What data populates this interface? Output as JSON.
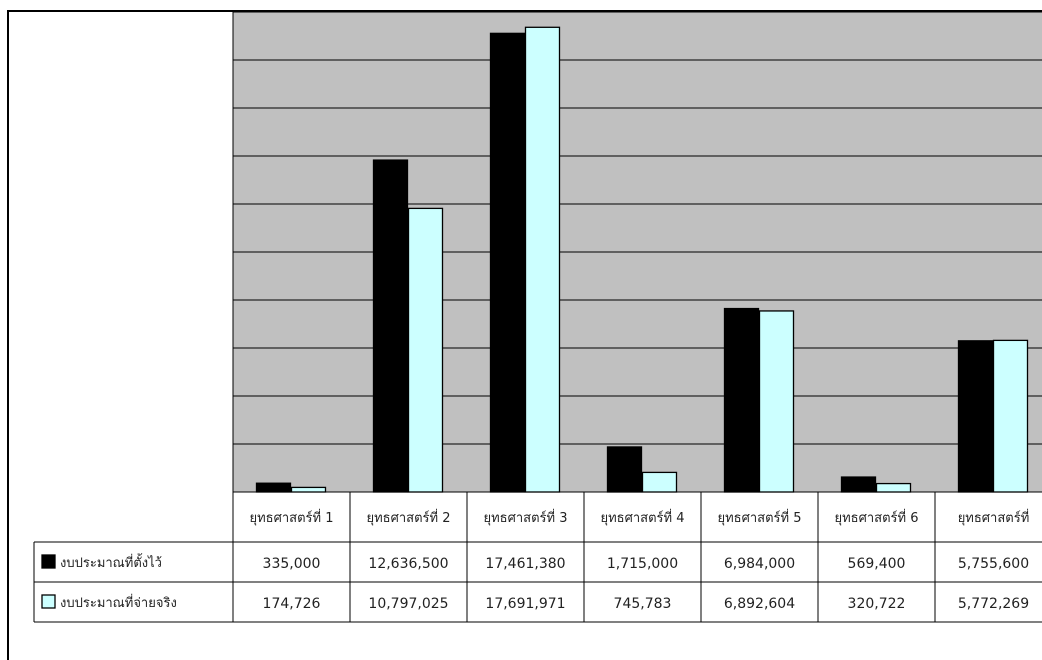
{
  "chart_data": {
    "type": "bar",
    "title": "",
    "xlabel": "",
    "ylabel": "",
    "ylim": [
      0,
      18000000
    ],
    "grid": true,
    "legend_placement": "table-left",
    "categories": [
      "ยุทธศาสตร์ที่ 1",
      "ยุทธศาสตร์ที่ 2",
      "ยุทธศาสตร์ที่ 3",
      "ยุทธศาสตร์ที่ 4",
      "ยุทธศาสตร์ที่ 5",
      "ยุทธศาสตร์ที่ 6",
      "ยุทธศาสตร์ที่"
    ],
    "series": [
      {
        "name": "งบประมาณที่ตั้งไว้",
        "color": "#000000",
        "values": [
          335000,
          12636500,
          17461380,
          1715000,
          6984000,
          569400,
          5755600
        ],
        "labels": [
          "335,000",
          "12,636,500",
          "17,461,380",
          "1,715,000",
          "6,984,000",
          "569,400",
          "5,755,600"
        ]
      },
      {
        "name": "งบประมาณที่จ่ายจริง",
        "color": "#ccffff",
        "values": [
          174726,
          10797025,
          17691971,
          745783,
          6892604,
          320722,
          5772269
        ],
        "labels": [
          "174,726",
          "10,797,025",
          "17,691,971",
          "745,783",
          "6,892,604",
          "320,722",
          "5,772,269"
        ]
      }
    ],
    "colors": {
      "plot_bg": "#c0c0c0",
      "grid": "#000000"
    }
  }
}
